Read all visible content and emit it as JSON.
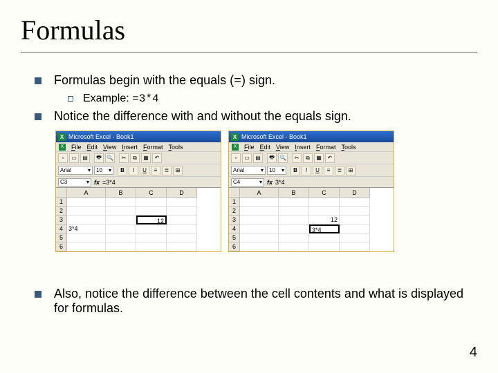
{
  "slide": {
    "title": "Formulas",
    "page_number": "4",
    "bullets": {
      "b1_pre": "Formulas begin with the equals (",
      "b1_eq": "=",
      "b1_post": ") sign.",
      "b1a": "Example: ",
      "b1a_code": "=3*4",
      "b2": "Notice the difference with and without the equals sign.",
      "b3": "Also, notice the difference between the cell contents and what is displayed for formulas."
    }
  },
  "excel": {
    "app_title": "Microsoft Excel - Book1",
    "menu": [
      "File",
      "Edit",
      "View",
      "Insert",
      "Format",
      "Tools"
    ],
    "font": "Arial",
    "size": "10",
    "toolbar_glyphs": [
      "▫",
      "▭",
      "▤",
      "🖶",
      "🔍",
      "✂",
      "⧉",
      "▦",
      "↶"
    ],
    "fmt_glyphs": [
      "B",
      "I",
      "U",
      "≡",
      "≣",
      "⊞"
    ],
    "left": {
      "cell_ref": "C3",
      "formula": "=3*4",
      "cols": [
        "",
        "A",
        "B",
        "C",
        "D"
      ],
      "rows": [
        {
          "n": "1",
          "cells": [
            "",
            "",
            "",
            ""
          ]
        },
        {
          "n": "2",
          "cells": [
            "",
            "",
            "",
            ""
          ]
        },
        {
          "n": "3",
          "cells": [
            "",
            "",
            "12",
            ""
          ],
          "sel": 2
        },
        {
          "n": "4",
          "cells": [
            "3*4",
            "",
            "",
            ""
          ]
        },
        {
          "n": "5",
          "cells": [
            "",
            "",
            "",
            ""
          ]
        },
        {
          "n": "6",
          "cells": [
            "",
            "",
            "",
            ""
          ]
        }
      ]
    },
    "right": {
      "cell_ref": "C4",
      "formula": "3*4",
      "cols": [
        "",
        "A",
        "B",
        "C",
        "D"
      ],
      "rows": [
        {
          "n": "1",
          "cells": [
            "",
            "",
            "",
            ""
          ]
        },
        {
          "n": "2",
          "cells": [
            "",
            "",
            "",
            ""
          ]
        },
        {
          "n": "3",
          "cells": [
            "",
            "",
            "12",
            ""
          ]
        },
        {
          "n": "4",
          "cells": [
            "",
            "",
            "3*4",
            ""
          ],
          "sel": 2,
          "left": true
        },
        {
          "n": "5",
          "cells": [
            "",
            "",
            "",
            ""
          ]
        },
        {
          "n": "6",
          "cells": [
            "",
            "",
            "",
            ""
          ]
        }
      ]
    }
  },
  "colors": {
    "background": "#fefef8",
    "bullet": "#3a5a7a",
    "border": "#d8b038",
    "titlebar": "#1a4a9a",
    "toolbar_bg": "#e8e4d8"
  }
}
